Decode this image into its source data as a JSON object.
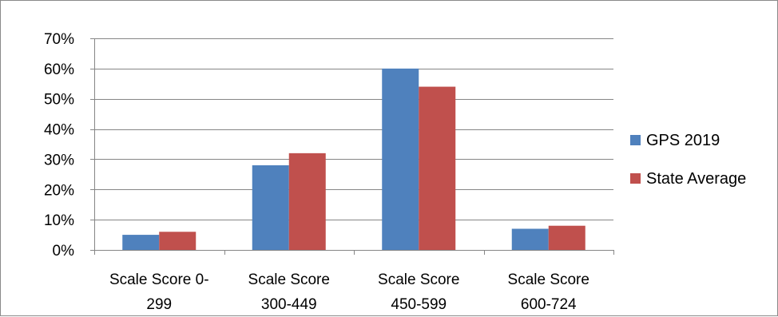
{
  "chart_data": {
    "type": "bar",
    "title": "",
    "xlabel": "",
    "ylabel": "",
    "categories": [
      [
        "Scale Score 0-",
        "299"
      ],
      [
        "Scale Score",
        "300-449"
      ],
      [
        "Scale Score",
        "450-599"
      ],
      [
        "Scale Score",
        "600-724"
      ]
    ],
    "series": [
      {
        "name": "GPS 2019",
        "values": [
          5,
          28,
          60,
          7
        ],
        "color": "#4f81bd"
      },
      {
        "name": "State Average",
        "values": [
          6,
          32,
          54,
          8
        ],
        "color": "#c0504d"
      }
    ],
    "ylim": [
      0,
      70
    ],
    "y_ticks": [
      "0%",
      "10%",
      "20%",
      "30%",
      "40%",
      "50%",
      "60%",
      "70%"
    ],
    "y_tick_values": [
      0,
      10,
      20,
      30,
      40,
      50,
      60,
      70
    ],
    "grid": true,
    "gridline_color": "#868686",
    "legend_placement": "right"
  }
}
